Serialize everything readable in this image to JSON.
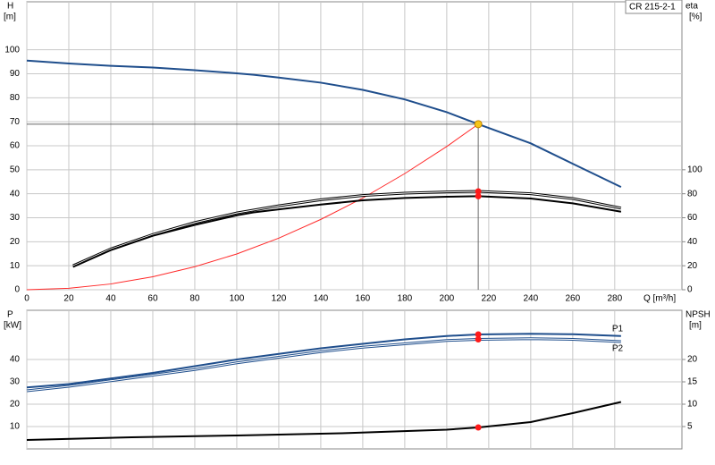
{
  "chart_data": [
    {
      "type": "line",
      "annotation": "CR 215-2-1",
      "y_label": "H",
      "y_unit": "[m]",
      "y2_label": "eta",
      "y2_unit": "[%]",
      "x_label": "Q [m³/h]",
      "xlim": [
        0,
        312
      ],
      "xticks": [
        0,
        20,
        40,
        60,
        80,
        100,
        120,
        140,
        160,
        180,
        200,
        220,
        240,
        260,
        280
      ],
      "ylim": [
        0,
        120
      ],
      "yticks": [
        0,
        10,
        20,
        30,
        40,
        50,
        60,
        70,
        80,
        90,
        100
      ],
      "y2lim": [
        0,
        240
      ],
      "y2ticks": [
        0,
        20,
        40,
        60,
        80,
        100
      ],
      "grid": true,
      "series": [
        {
          "color": "#1f4e8c",
          "style": "thick",
          "x": [
            0,
            20,
            40,
            60,
            80,
            100,
            108,
            120,
            140,
            160,
            180,
            200,
            215,
            240,
            260,
            283
          ],
          "values": [
            95.5,
            94.3,
            93.3,
            92.6,
            91.5,
            90.2,
            89.6,
            88.4,
            86.3,
            83.3,
            79.3,
            74,
            69,
            61,
            52.5,
            42.8
          ]
        },
        {
          "color": "#ff2a2a",
          "style": "thin",
          "x": [
            0,
            20,
            40,
            60,
            80,
            100,
            120,
            140,
            160,
            180,
            200,
            215
          ],
          "values": [
            0,
            0.6,
            2.4,
            5.4,
            9.6,
            14.9,
            21.5,
            29.3,
            38.2,
            48.4,
            59.7,
            69
          ]
        },
        {
          "color": "#000000",
          "style": "double",
          "axis": "y2",
          "marker_index": 10,
          "x": [
            22,
            40,
            60,
            80,
            100,
            120,
            140,
            160,
            180,
            200,
            215,
            240,
            260,
            283
          ],
          "values": [
            20,
            34,
            46,
            56,
            64,
            70,
            75,
            78.5,
            80.5,
            81.5,
            82,
            80,
            76,
            68
          ]
        },
        {
          "color": "#000000",
          "style": "thick",
          "axis": "y2",
          "marker_index": 11,
          "x": [
            22,
            40,
            60,
            80,
            100,
            108,
            120,
            140,
            160,
            180,
            200,
            215,
            240,
            260,
            283
          ],
          "values": [
            19,
            33,
            45,
            54,
            62,
            64.5,
            67,
            71,
            74.5,
            76.5,
            77.5,
            78,
            76,
            72,
            65
          ]
        }
      ],
      "operating_point": {
        "x": 215,
        "y": 69,
        "color": "#f5c518"
      }
    },
    {
      "type": "line",
      "y_label": "P",
      "y_unit": "[kW]",
      "y2_label": "NPSH",
      "y2_unit": "[m]",
      "xlim": [
        0,
        312
      ],
      "ylim": [
        0,
        62
      ],
      "yticks": [
        10,
        20,
        30,
        40
      ],
      "y2lim": [
        0,
        31
      ],
      "y2ticks": [
        5,
        10,
        15,
        20
      ],
      "grid": true,
      "series": [
        {
          "name": "P1",
          "color": "#1f4e8c",
          "style": "thick",
          "marker_index": 11,
          "x": [
            0,
            20,
            40,
            60,
            80,
            100,
            120,
            140,
            160,
            180,
            200,
            215,
            240,
            260,
            283
          ],
          "values": [
            27.5,
            29,
            31.5,
            34,
            37,
            40,
            42.5,
            45,
            47,
            49,
            50.5,
            51.2,
            51.5,
            51.3,
            50.5
          ]
        },
        {
          "name": "P2",
          "color": "#1f4e8c",
          "style": "double",
          "marker_index": 11,
          "x": [
            0,
            20,
            40,
            60,
            80,
            100,
            120,
            140,
            160,
            180,
            200,
            215,
            240,
            260,
            283
          ],
          "values": [
            26,
            28,
            30.5,
            33,
            35.5,
            38.5,
            41,
            43.5,
            45.5,
            47,
            48.5,
            49,
            49.3,
            49,
            48
          ]
        },
        {
          "color": "#000000",
          "style": "thick",
          "axis": "y2",
          "marker_index": 5,
          "x": [
            0,
            50,
            100,
            150,
            200,
            215,
            240,
            260,
            283
          ],
          "values": [
            2,
            2.6,
            3,
            3.5,
            4.3,
            4.8,
            6,
            8,
            10.5
          ]
        }
      ]
    }
  ]
}
